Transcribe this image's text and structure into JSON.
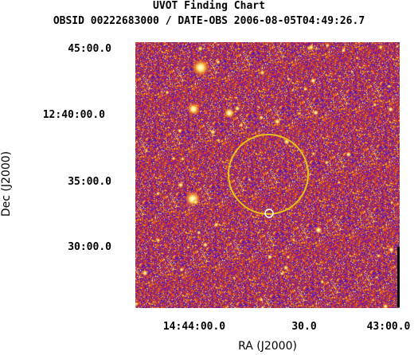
{
  "header": {
    "title": "UVOT Finding Chart",
    "subtitle": "OBSID 00222683000 / DATE-OBS 2006-08-05T04:49:26.7"
  },
  "axes": {
    "xlabel": "RA (J2000)",
    "ylabel": "Dec (J2000)",
    "x_ticks": [
      "14:44:00.0",
      "30.0",
      "43:00.0"
    ],
    "y_ticks": [
      "45:00.0",
      "12:40:00.0",
      "35:00.0",
      "30:00.0"
    ]
  },
  "colors": {
    "background_low": "#3a1fa0",
    "background_mid": "#c22a1a",
    "star_bright": "#ffffff",
    "star_core": "#ffee55",
    "error_circle": "#e8c21a"
  },
  "markers": {
    "error_circle": "error-circle",
    "target": "target-marker"
  }
}
